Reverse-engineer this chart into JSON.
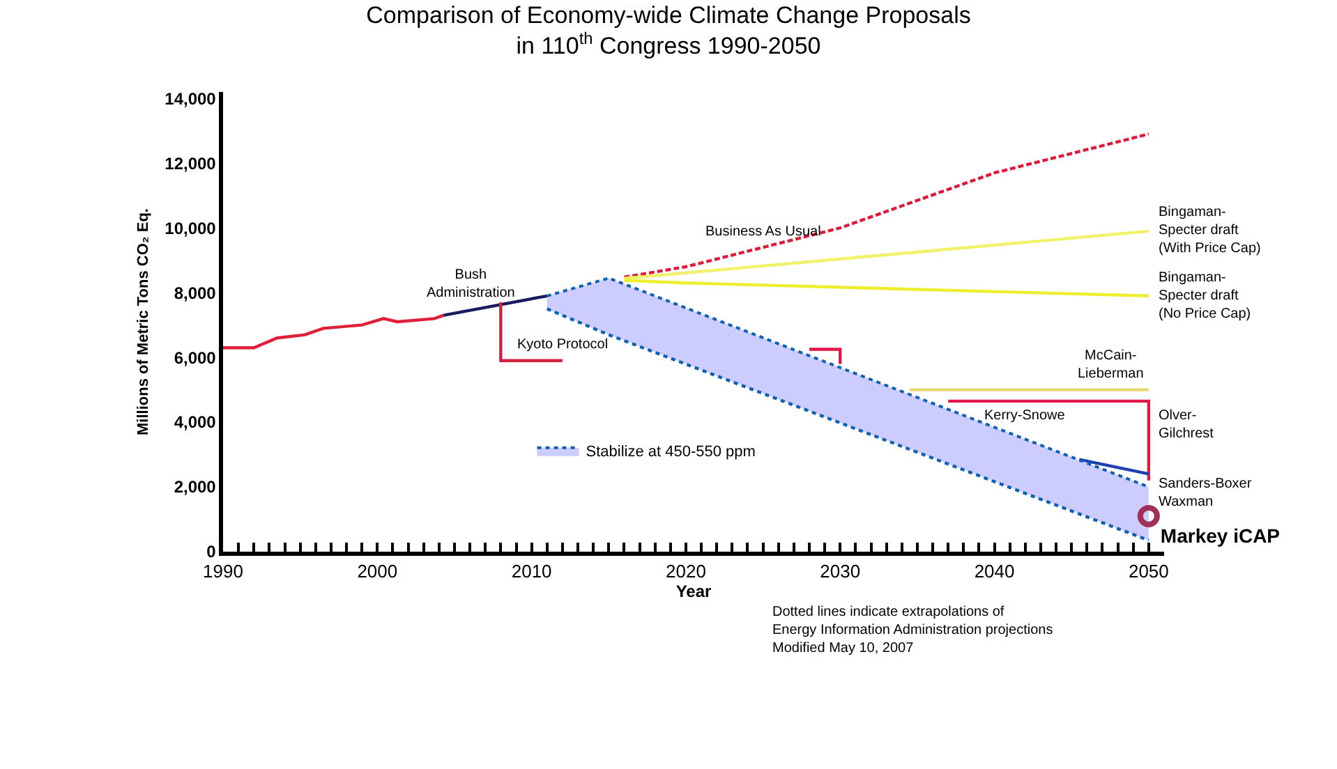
{
  "chart_data": {
    "type": "line",
    "title": "Comparison of Economy-wide Climate Change Proposals\nin 110$^{th}$ Congress 1990-2050",
    "xlabel": "Year",
    "ylabel": "Millions of Metric Tons CO₂ Eq.",
    "xlim": [
      1990,
      2051
    ],
    "ylim": [
      0,
      14200
    ],
    "xticks": [
      1990,
      {
        "value": 1991,
        "label": null
      },
      {
        "value": 1992,
        "label": null
      },
      {
        "value": 1993,
        "label": null
      },
      {
        "value": 1994,
        "label": null
      },
      {
        "value": 1995,
        "label": null
      },
      {
        "value": 1996,
        "label": null
      },
      {
        "value": 1997,
        "label": null
      },
      {
        "value": 1998,
        "label": null
      },
      {
        "value": 1999,
        "label": null
      },
      2000,
      {
        "value": 2001,
        "label": null
      },
      {
        "value": 2002,
        "label": null
      },
      {
        "value": 2003,
        "label": null
      },
      {
        "value": 2004,
        "label": null
      },
      {
        "value": 2005,
        "label": null
      },
      {
        "value": 2006,
        "label": null
      },
      {
        "value": 2007,
        "label": null
      },
      {
        "value": 2008,
        "label": null
      },
      {
        "value": 2009,
        "label": null
      },
      2010,
      {
        "value": 2011,
        "label": null
      },
      {
        "value": 2012,
        "label": null
      },
      {
        "value": 2013,
        "label": null
      },
      {
        "value": 2014,
        "label": null
      },
      {
        "value": 2015,
        "label": null
      },
      {
        "value": 2016,
        "label": null
      },
      {
        "value": 2017,
        "label": null
      },
      {
        "value": 2018,
        "label": null
      },
      {
        "value": 2019,
        "label": null
      },
      2020,
      {
        "value": 2021,
        "label": null
      },
      {
        "value": 2022,
        "label": null
      },
      {
        "value": 2023,
        "label": null
      },
      {
        "value": 2024,
        "label": null
      },
      {
        "value": 2025,
        "label": null
      },
      {
        "value": 2026,
        "label": null
      },
      {
        "value": 2027,
        "label": null
      },
      {
        "value": 2028,
        "label": null
      },
      {
        "value": 2029,
        "label": null
      },
      2030,
      {
        "value": 2031,
        "label": null
      },
      {
        "value": 2032,
        "label": null
      },
      {
        "value": 2033,
        "label": null
      },
      {
        "value": 2034,
        "label": null
      },
      {
        "value": 2035,
        "label": null
      },
      {
        "value": 2036,
        "label": null
      },
      {
        "value": 2037,
        "label": null
      },
      {
        "value": 2038,
        "label": null
      },
      {
        "value": 2039,
        "label": null
      },
      2040,
      {
        "value": 2041,
        "label": null
      },
      {
        "value": 2042,
        "label": null
      },
      {
        "value": 2043,
        "label": null
      },
      {
        "value": 2044,
        "label": null
      },
      {
        "value": 2045,
        "label": null
      },
      {
        "value": 2046,
        "label": null
      },
      {
        "value": 2047,
        "label": null
      },
      {
        "value": 2048,
        "label": null
      },
      {
        "value": 2049,
        "label": null
      },
      2050
    ],
    "yticks": [
      0,
      {
        "value": 2000,
        "label": "2,000"
      },
      {
        "value": 4000,
        "label": "4,000"
      },
      {
        "value": 6000,
        "label": "6,000"
      },
      {
        "value": 8000,
        "label": "8,000"
      },
      {
        "value": 10000,
        "label": "10,000"
      },
      {
        "value": 12000,
        "label": "12,000"
      },
      {
        "value": 14000,
        "label": "14,000"
      }
    ],
    "legend": "bottom",
    "series": [
      {
        "color": "#e0203a",
        "line_style": "solid",
        "x": [
          1990,
          1992,
          1993.5,
          1995.3,
          1996.5,
          1999,
          2000.4,
          2001.3,
          2003.7,
          2004.3
        ],
        "values": [
          6300,
          6300,
          6600,
          6700,
          6900,
          7000,
          7200,
          7100,
          7200,
          7300
        ]
      },
      {
        "color": "#1a1a60",
        "line_style": "solid",
        "x": [
          2004.3,
          2011
        ],
        "values": [
          7300,
          7900
        ]
      },
      {
        "color": "#d81e3c",
        "line_style": "dashed",
        "x": [
          2016,
          2020,
          2030,
          2040,
          2050
        ],
        "values": [
          8480,
          8800,
          10000,
          11700,
          12900
        ]
      },
      {
        "color": "#f2f26a",
        "line_style": "solid",
        "x": [
          2016,
          2050
        ],
        "values": [
          8440,
          9900
        ]
      },
      {
        "color": "#eeee30",
        "line_style": "solid",
        "x": [
          2016,
          2020,
          2050
        ],
        "values": [
          8380,
          8300,
          7900
        ]
      },
      {
        "color": "#d02040",
        "line_style": "solid",
        "x": [
          2008,
          2008,
          2012
        ],
        "values": [
          7700,
          5900,
          5900
        ]
      },
      {
        "color": "#e8d870",
        "line_style": "solid",
        "x": [
          2034.5,
          2050
        ],
        "values": [
          5000,
          5000
        ]
      },
      {
        "color": "#e01848",
        "line_style": "solid",
        "x": [
          2028,
          2030,
          2030,
          2033,
          2037,
          2050,
          2050
        ],
        "values": [
          6250,
          6250,
          5800,
          null,
          4650,
          4650,
          2200
        ]
      },
      {
        "color": "#2040b0",
        "line_style": "solid",
        "x": [
          2045.5,
          2050
        ],
        "values": [
          2850,
          2400
        ]
      },
      {
        "color": "#1060b0",
        "line_style": "dotted",
        "x": [
          2011,
          2015,
          2050
        ],
        "values": [
          7500,
          6700,
          350
        ]
      },
      {
        "type": "area",
        "name": "Stabilize at 450-550 ppm",
        "color": "#ccccff",
        "line_style": "dotted",
        "x": [
          2011,
          2015,
          2050
        ],
        "values": [
          7900,
          8450,
          2000
        ]
      },
      {
        "type": "scatter",
        "name": "Markey iCAP",
        "color": "#a0305a",
        "marker": "circle",
        "x": [
          2050
        ],
        "values": [
          1100
        ]
      }
    ],
    "annotations": [
      {
        "text": "Bush\nAdministration",
        "x": 2006,
        "y": 7500
      },
      {
        "text": "Kyoto Protocol",
        "x": 2012,
        "y": 5900
      },
      {
        "text": "Business As Usual",
        "x": 2025,
        "y": 9400
      },
      {
        "text": "Bingaman-\nSpecter draft\n(With Price Cap)",
        "x": 2050,
        "y": 9900
      },
      {
        "text": "Bingaman-\nSpecter draft\n(No Price Cap)",
        "x": 2050,
        "y": 7900
      },
      {
        "text": "McCain-\nLieberman",
        "x": 2047.5,
        "y": 5000
      },
      {
        "text": "Olver-\nGilchrest",
        "x": 2050,
        "y": 3900
      },
      {
        "text": "Kerry-Snowe",
        "x": 2042,
        "y": 3700
      },
      {
        "text": "Sanders-Boxer\nWaxman",
        "x": 2050,
        "y": 1800
      },
      "Dotted lines indicate extrapolations of\nEnergy Information Administration projections\nModified May 10, 2007"
    ]
  }
}
